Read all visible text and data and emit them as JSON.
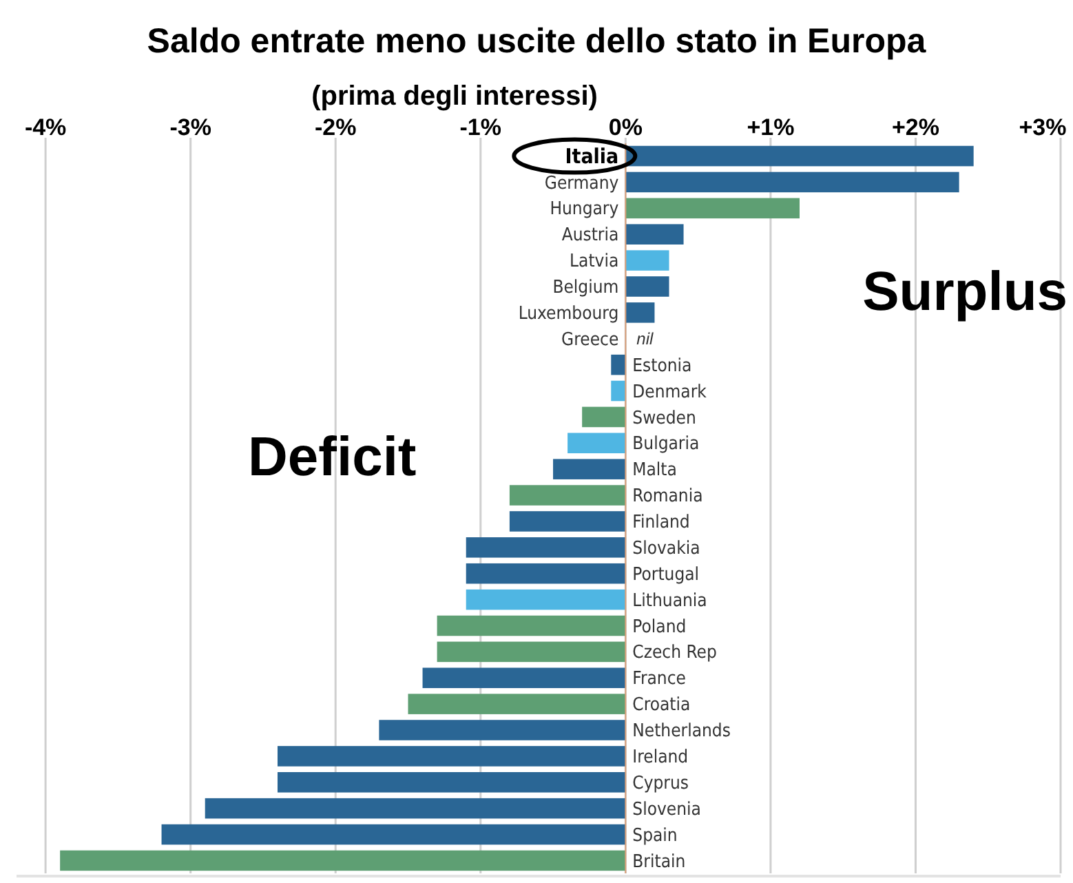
{
  "chart_data": {
    "type": "bar",
    "orientation": "horizontal",
    "title": "Saldo entrate meno uscite dello stato in Europa",
    "subtitle": "(prima degli interessi)",
    "categories": [
      "Italia",
      "Germany",
      "Hungary",
      "Austria",
      "Latvia",
      "Belgium",
      "Luxembourg",
      "Greece",
      "Estonia",
      "Denmark",
      "Sweden",
      "Bulgaria",
      "Malta",
      "Romania",
      "Finland",
      "Slovakia",
      "Portugal",
      "Lithuania",
      "Poland",
      "Czech Rep",
      "France",
      "Croatia",
      "Netherlands",
      "Ireland",
      "Cyprus",
      "Slovenia",
      "Spain",
      "Britain"
    ],
    "values": [
      2.4,
      2.3,
      1.2,
      0.4,
      0.3,
      0.3,
      0.2,
      0,
      -0.1,
      -0.1,
      -0.3,
      -0.4,
      -0.5,
      -0.8,
      -0.8,
      -1.1,
      -1.1,
      -1.1,
      -1.3,
      -1.3,
      -1.4,
      -1.5,
      -1.7,
      -2.4,
      -2.4,
      -2.9,
      -3.2,
      -3.9
    ],
    "colors": [
      "#2a6695",
      "#2a6695",
      "#5e9f73",
      "#2a6695",
      "#4fb6e3",
      "#2a6695",
      "#2a6695",
      "#2a6695",
      "#2a6695",
      "#4fb6e3",
      "#5e9f73",
      "#4fb6e3",
      "#2a6695",
      "#5e9f73",
      "#2a6695",
      "#2a6695",
      "#2a6695",
      "#4fb6e3",
      "#5e9f73",
      "#5e9f73",
      "#2a6695",
      "#5e9f73",
      "#2a6695",
      "#2a6695",
      "#2a6695",
      "#2a6695",
      "#2a6695",
      "#5e9f73"
    ],
    "value_labels": [
      null,
      null,
      null,
      null,
      null,
      null,
      null,
      "nil",
      null,
      null,
      null,
      null,
      null,
      null,
      null,
      null,
      null,
      null,
      null,
      null,
      null,
      null,
      null,
      null,
      null,
      null,
      null,
      null
    ],
    "xlim": [
      -4.2,
      3
    ],
    "xticks": [
      {
        "value": -4,
        "label": "-4%"
      },
      {
        "value": -3,
        "label": "-3%"
      },
      {
        "value": -2,
        "label": "-2%"
      },
      {
        "value": -1,
        "label": "-1%"
      },
      {
        "value": 0,
        "label": "0%"
      },
      {
        "value": 1,
        "label": "+1%"
      },
      {
        "value": 2,
        "label": "+2%"
      },
      {
        "value": 3,
        "label": "+3%"
      }
    ],
    "grid": "x",
    "annotations": [
      "Deficit",
      "Surplus"
    ]
  }
}
